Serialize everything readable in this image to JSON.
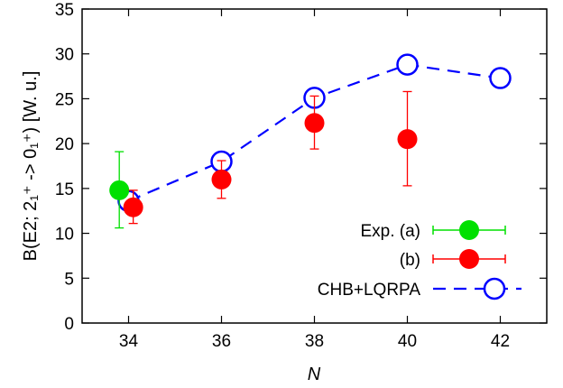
{
  "chart_data": {
    "type": "scatter",
    "xlabel": "N",
    "ylabel": "B(E2; 2₁⁺ -> 0₁⁺)  [W. u.]",
    "xlim": [
      33,
      43
    ],
    "ylim": [
      0,
      35
    ],
    "xticks": [
      34,
      36,
      38,
      40,
      42
    ],
    "yticks": [
      0,
      5,
      10,
      15,
      20,
      25,
      30,
      35
    ],
    "grid": false,
    "legend_position": "bottom-right",
    "series": [
      {
        "name": "Exp. (a)",
        "style": "errorbar-points",
        "color": "#00e000",
        "points": [
          {
            "x": 33.8,
            "y": 14.8,
            "err_low": 4.2,
            "err_high": 4.3
          }
        ]
      },
      {
        "name": "(b)",
        "style": "errorbar-points",
        "color": "#ff0000",
        "points": [
          {
            "x": 34.1,
            "y": 12.9,
            "err_low": 1.8,
            "err_high": 1.9
          },
          {
            "x": 36.0,
            "y": 16.0,
            "err_low": 2.1,
            "err_high": 2.1
          },
          {
            "x": 38.0,
            "y": 22.3,
            "err_low": 2.9,
            "err_high": 3.0
          },
          {
            "x": 40.0,
            "y": 20.5,
            "err_low": 5.2,
            "err_high": 5.3
          }
        ]
      },
      {
        "name": "CHB+LQRPA",
        "style": "dashed-line-open-circles",
        "color": "#0000ff",
        "points": [
          {
            "x": 34,
            "y": 13.6
          },
          {
            "x": 36,
            "y": 18.0
          },
          {
            "x": 38,
            "y": 25.1
          },
          {
            "x": 40,
            "y": 28.8
          },
          {
            "x": 42,
            "y": 27.3
          }
        ]
      }
    ]
  }
}
